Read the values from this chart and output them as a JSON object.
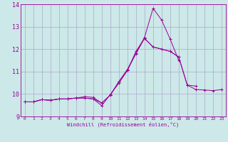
{
  "x": [
    0,
    1,
    2,
    3,
    4,
    5,
    6,
    7,
    8,
    9,
    10,
    11,
    12,
    13,
    14,
    15,
    16,
    17,
    18,
    19,
    20,
    21,
    22,
    23
  ],
  "line1": [
    9.65,
    9.65,
    9.75,
    9.72,
    9.78,
    9.78,
    9.82,
    9.82,
    9.78,
    9.48,
    9.98,
    10.48,
    11.05,
    11.82,
    12.52,
    13.82,
    13.3,
    12.45,
    11.5,
    null,
    null,
    null,
    null,
    null
  ],
  "line2": [
    9.65,
    9.65,
    9.75,
    9.72,
    9.78,
    9.78,
    9.82,
    9.82,
    9.78,
    9.6,
    9.95,
    10.55,
    11.1,
    11.8,
    12.48,
    12.1,
    12.0,
    11.9,
    11.65,
    10.4,
    10.35,
    null,
    null,
    null
  ],
  "line3": [
    9.65,
    9.65,
    9.75,
    9.72,
    9.78,
    9.78,
    9.82,
    9.88,
    9.85,
    9.6,
    9.95,
    10.55,
    11.05,
    11.9,
    12.48,
    12.1,
    12.0,
    11.9,
    11.65,
    10.4,
    10.2,
    10.18,
    10.15,
    10.2
  ],
  "background_color": "#cce8e8",
  "grid_color": "#aaaacc",
  "line_color": "#990099",
  "xlabel": "Windchill (Refroidissement éolien,°C)",
  "xlim": [
    -0.5,
    23.5
  ],
  "ylim": [
    9,
    14
  ],
  "yticks": [
    9,
    10,
    11,
    12,
    13,
    14
  ],
  "xticks": [
    0,
    1,
    2,
    3,
    4,
    5,
    6,
    7,
    8,
    9,
    10,
    11,
    12,
    13,
    14,
    15,
    16,
    17,
    18,
    19,
    20,
    21,
    22,
    23
  ]
}
